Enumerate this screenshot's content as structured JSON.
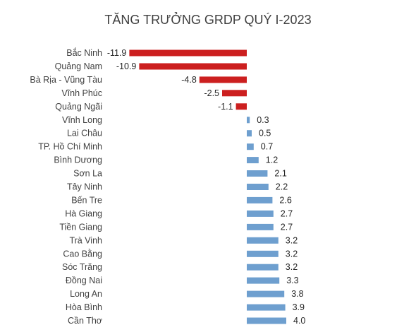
{
  "chart_data": {
    "type": "bar",
    "orientation": "horizontal",
    "title": "TĂNG TRƯỞNG GRDP QUÝ I-2023",
    "categories": [
      "Bắc Ninh",
      "Quảng Nam",
      "Bà Rịa - Vũng Tàu",
      "Vĩnh Phúc",
      "Quảng Ngãi",
      "Vĩnh Long",
      "Lai Châu",
      "TP. Hồ Chí Minh",
      "Bình Dương",
      "Sơn La",
      "Tây Ninh",
      "Bến Tre",
      "Hà Giang",
      "Tiền Giang",
      "Trà Vinh",
      "Cao Bằng",
      "Sóc Trăng",
      "Đồng Nai",
      "Long An",
      "Hòa Bình",
      "Cần Thơ"
    ],
    "values": [
      -11.9,
      -10.9,
      -4.8,
      -2.5,
      -1.1,
      0.3,
      0.5,
      0.7,
      1.2,
      2.1,
      2.2,
      2.6,
      2.7,
      2.7,
      3.2,
      3.2,
      3.2,
      3.3,
      3.8,
      3.9,
      4.0
    ],
    "value_labels": [
      "-11.9",
      "-10.9",
      "-4.8",
      "-2.5",
      "-1.1",
      "0.3",
      "0.5",
      "0.7",
      "1.2",
      "2.1",
      "2.2",
      "2.6",
      "2.7",
      "2.7",
      "3.2",
      "3.2",
      "3.2",
      "3.3",
      "3.8",
      "3.9",
      "4.0"
    ],
    "colors": {
      "negative": "#cc1f1f",
      "positive": "#6e9fcf"
    },
    "grid": false,
    "legend": false
  }
}
